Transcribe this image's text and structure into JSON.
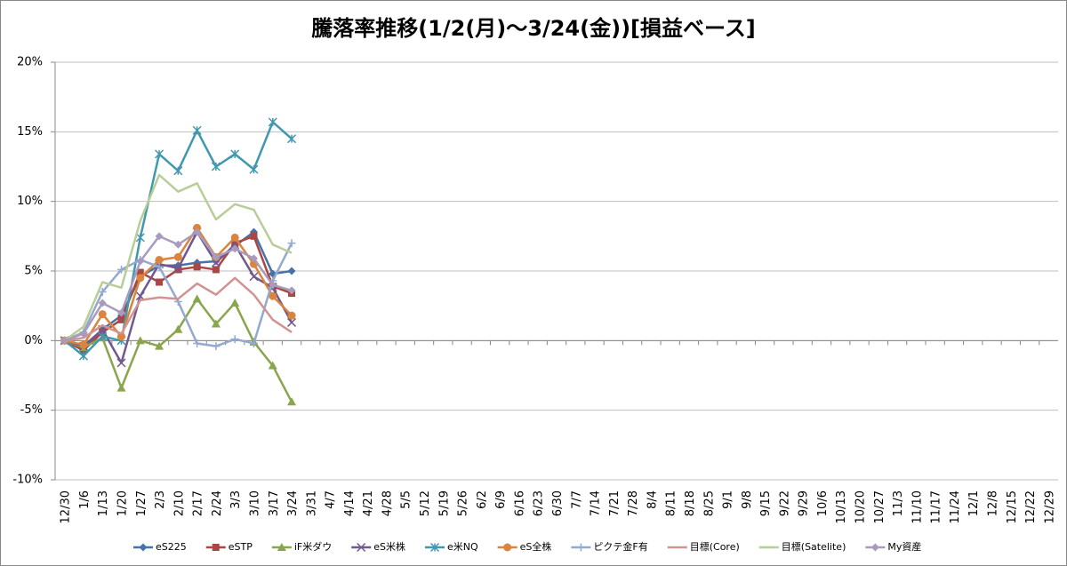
{
  "chart_data": {
    "type": "line",
    "title": "騰落率推移(1/2(月)～3/24(金))[損益ベース]",
    "categories": [
      "12/30",
      "1/6",
      "1/13",
      "1/20",
      "1/27",
      "2/3",
      "2/10",
      "2/17",
      "2/24",
      "3/3",
      "3/10",
      "3/17",
      "3/24",
      "3/31",
      "4/7",
      "4/14",
      "4/21",
      "4/28",
      "5/5",
      "5/12",
      "5/19",
      "5/26",
      "6/2",
      "6/9",
      "6/16",
      "6/23",
      "6/30",
      "7/7",
      "7/14",
      "7/21",
      "7/28",
      "8/4",
      "8/11",
      "8/18",
      "8/25",
      "9/1",
      "9/8",
      "9/15",
      "9/22",
      "9/29",
      "10/6",
      "10/13",
      "10/20",
      "10/27",
      "11/3",
      "11/10",
      "11/17",
      "11/24",
      "12/1",
      "12/8",
      "12/15",
      "12/22",
      "12/29"
    ],
    "ylim": [
      -10,
      20
    ],
    "yticks": [
      {
        "value": -10,
        "label": "-10%"
      },
      {
        "value": -5,
        "label": "-5%"
      },
      {
        "value": 0,
        "label": "0%"
      },
      {
        "value": 5,
        "label": "5%"
      },
      {
        "value": 10,
        "label": "10%"
      },
      {
        "value": 15,
        "label": "15%"
      },
      {
        "value": 20,
        "label": "20%"
      }
    ],
    "grid": true,
    "legend": "bottom",
    "series": [
      {
        "name": "eS225",
        "color": "#4572a7",
        "marker": "diamond",
        "values": [
          0,
          -0.7,
          0.8,
          1.8,
          4.6,
          5.4,
          5.4,
          5.6,
          5.7,
          6.8,
          7.8,
          4.8,
          5.0,
          null,
          null,
          null,
          null,
          null,
          null,
          null,
          null,
          null,
          null,
          null,
          null,
          null,
          null,
          null,
          null,
          null,
          null,
          null,
          null,
          null,
          null,
          null,
          null,
          null,
          null,
          null,
          null,
          null,
          null,
          null,
          null,
          null,
          null,
          null,
          null,
          null,
          null,
          null,
          null
        ]
      },
      {
        "name": "eSTP",
        "color": "#aa4643",
        "marker": "square",
        "values": [
          0,
          -0.7,
          0.6,
          1.5,
          4.9,
          4.2,
          5.1,
          5.3,
          5.1,
          7.0,
          7.5,
          3.9,
          3.4,
          null,
          null,
          null,
          null,
          null,
          null,
          null,
          null,
          null,
          null,
          null,
          null,
          null,
          null,
          null,
          null,
          null,
          null,
          null,
          null,
          null,
          null,
          null,
          null,
          null,
          null,
          null,
          null,
          null,
          null,
          null,
          null,
          null,
          null,
          null,
          null,
          null,
          null,
          null,
          null
        ]
      },
      {
        "name": "iF米ダウ",
        "color": "#89a54e",
        "marker": "triangle",
        "values": [
          0,
          -0.5,
          0.2,
          -3.4,
          0,
          -0.4,
          0.8,
          3.0,
          1.2,
          2.7,
          -0.1,
          -1.8,
          -4.4,
          null,
          null,
          null,
          null,
          null,
          null,
          null,
          null,
          null,
          null,
          null,
          null,
          null,
          null,
          null,
          null,
          null,
          null,
          null,
          null,
          null,
          null,
          null,
          null,
          null,
          null,
          null,
          null,
          null,
          null,
          null,
          null,
          null,
          null,
          null,
          null,
          null,
          null,
          null,
          null
        ]
      },
      {
        "name": "eS米株",
        "color": "#71588f",
        "marker": "x",
        "values": [
          0,
          -0.4,
          0.8,
          -1.6,
          3.2,
          5.5,
          5.2,
          7.8,
          5.6,
          6.9,
          4.6,
          3.8,
          1.3,
          null,
          null,
          null,
          null,
          null,
          null,
          null,
          null,
          null,
          null,
          null,
          null,
          null,
          null,
          null,
          null,
          null,
          null,
          null,
          null,
          null,
          null,
          null,
          null,
          null,
          null,
          null,
          null,
          null,
          null,
          null,
          null,
          null,
          null,
          null,
          null,
          null,
          null,
          null,
          null
        ]
      },
      {
        "name": "e米NQ",
        "color": "#4198af",
        "marker": "asterisk",
        "values": [
          0,
          -1.1,
          0.3,
          0,
          7.4,
          13.4,
          12.2,
          15.1,
          12.5,
          13.4,
          12.3,
          15.7,
          14.5,
          null,
          null,
          null,
          null,
          null,
          null,
          null,
          null,
          null,
          null,
          null,
          null,
          null,
          null,
          null,
          null,
          null,
          null,
          null,
          null,
          null,
          null,
          null,
          null,
          null,
          null,
          null,
          null,
          null,
          null,
          null,
          null,
          null,
          null,
          null,
          null,
          null,
          null,
          null,
          null
        ]
      },
      {
        "name": "eS全株",
        "color": "#db843d",
        "marker": "circle",
        "values": [
          0,
          -0.3,
          1.9,
          0.3,
          4.5,
          5.8,
          6.0,
          8.1,
          6.0,
          7.4,
          5.5,
          3.2,
          1.8,
          null,
          null,
          null,
          null,
          null,
          null,
          null,
          null,
          null,
          null,
          null,
          null,
          null,
          null,
          null,
          null,
          null,
          null,
          null,
          null,
          null,
          null,
          null,
          null,
          null,
          null,
          null,
          null,
          null,
          null,
          null,
          null,
          null,
          null,
          null,
          null,
          null,
          null,
          null,
          null
        ]
      },
      {
        "name": "ピクテ金F有",
        "color": "#93a9cf",
        "marker": "plus",
        "values": [
          0,
          0.6,
          3.5,
          5.1,
          5.8,
          5.3,
          2.8,
          -0.2,
          -0.4,
          0.1,
          -0.2,
          4.3,
          7.0,
          null,
          null,
          null,
          null,
          null,
          null,
          null,
          null,
          null,
          null,
          null,
          null,
          null,
          null,
          null,
          null,
          null,
          null,
          null,
          null,
          null,
          null,
          null,
          null,
          null,
          null,
          null,
          null,
          null,
          null,
          null,
          null,
          null,
          null,
          null,
          null,
          null,
          null,
          null,
          null
        ]
      },
      {
        "name": "目標(Core)",
        "color": "#d19392",
        "marker": "none",
        "values": [
          0,
          0.2,
          1.1,
          0.5,
          2.9,
          3.1,
          3.0,
          4.1,
          3.3,
          4.5,
          3.3,
          1.5,
          0.6,
          null,
          null,
          null,
          null,
          null,
          null,
          null,
          null,
          null,
          null,
          null,
          null,
          null,
          null,
          null,
          null,
          null,
          null,
          null,
          null,
          null,
          null,
          null,
          null,
          null,
          null,
          null,
          null,
          null,
          null,
          null,
          null,
          null,
          null,
          null,
          null,
          null,
          null,
          null,
          null
        ]
      },
      {
        "name": "目標(Satelite)",
        "color": "#b9cd96",
        "marker": "none",
        "values": [
          0,
          1.0,
          4.2,
          3.8,
          8.6,
          11.9,
          10.7,
          11.3,
          8.7,
          9.8,
          9.4,
          6.9,
          6.3,
          null,
          null,
          null,
          null,
          null,
          null,
          null,
          null,
          null,
          null,
          null,
          null,
          null,
          null,
          null,
          null,
          null,
          null,
          null,
          null,
          null,
          null,
          null,
          null,
          null,
          null,
          null,
          null,
          null,
          null,
          null,
          null,
          null,
          null,
          null,
          null,
          null,
          null,
          null,
          null
        ]
      },
      {
        "name": "My資産",
        "color": "#a99bbd",
        "marker": "diamond",
        "values": [
          0,
          0.5,
          2.7,
          2.0,
          5.7,
          7.5,
          6.9,
          7.8,
          6.0,
          6.6,
          5.9,
          4.0,
          3.6,
          null,
          null,
          null,
          null,
          null,
          null,
          null,
          null,
          null,
          null,
          null,
          null,
          null,
          null,
          null,
          null,
          null,
          null,
          null,
          null,
          null,
          null,
          null,
          null,
          null,
          null,
          null,
          null,
          null,
          null,
          null,
          null,
          null,
          null,
          null,
          null,
          null,
          null,
          null,
          null
        ]
      }
    ]
  }
}
